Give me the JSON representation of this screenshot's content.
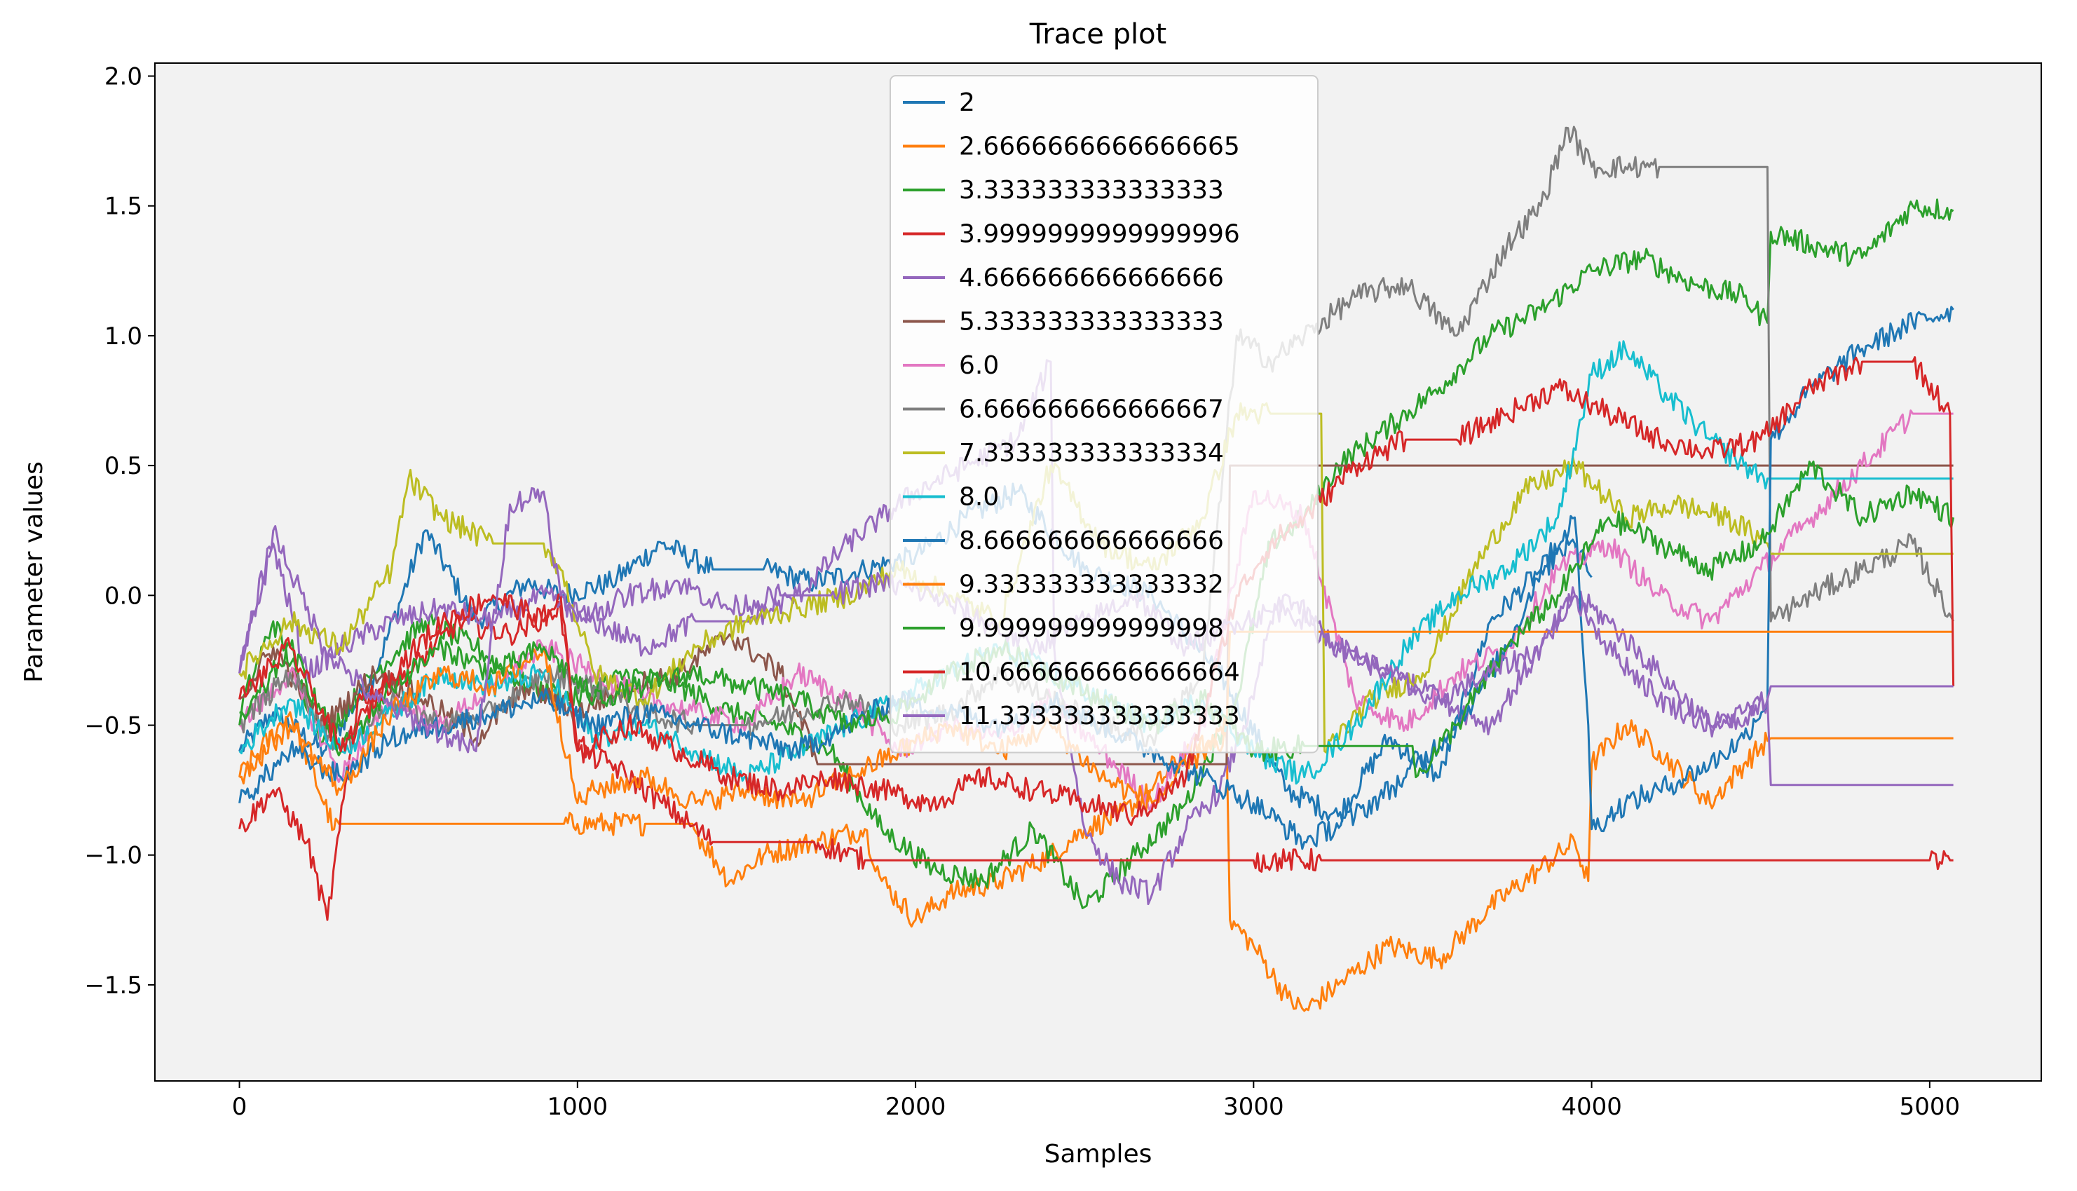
{
  "chart_data": {
    "type": "line",
    "title": "Trace plot",
    "xlabel": "Samples",
    "ylabel": "Parameter values",
    "xlim": [
      -250,
      5330
    ],
    "ylim": [
      -1.87,
      2.05
    ],
    "xticks": [
      0,
      1000,
      2000,
      3000,
      4000,
      5000
    ],
    "xtick_labels": [
      "0",
      "1000",
      "2000",
      "3000",
      "4000",
      "5000"
    ],
    "yticks": [
      -1.5,
      -1.0,
      -0.5,
      0.0,
      0.5,
      1.0,
      1.5,
      2.0
    ],
    "ytick_labels": [
      "−1.5",
      "−1.0",
      "−0.5",
      "0.0",
      "0.5",
      "1.0",
      "1.5",
      "2.0"
    ],
    "grid": false,
    "legend_position": "top-center",
    "plot_background": "#f2f2f2",
    "series": [
      {
        "name": "2",
        "color": "#1f77b4",
        "x": [
          0,
          100,
          250,
          400,
          550,
          700,
          850,
          950,
          1100,
          1250,
          1400,
          1550,
          1700,
          1850,
          2000,
          2150,
          2300,
          2500,
          2700,
          2900,
          3100,
          3250,
          3400,
          3550,
          3700,
          3850,
          3950,
          4000
        ],
        "y": [
          -0.6,
          -0.45,
          -0.6,
          -0.3,
          0.25,
          -0.1,
          0.05,
          0.0,
          0.05,
          0.2,
          0.1,
          0.1,
          0.05,
          0.1,
          0.15,
          0.3,
          0.4,
          0.1,
          0.0,
          -0.3,
          -0.75,
          -0.85,
          -0.55,
          -0.7,
          -0.1,
          0.1,
          0.2,
          0.07
        ]
      },
      {
        "name": "2.6666666666666665",
        "color": "#ff7f0e",
        "x": [
          0,
          150,
          280,
          300,
          800,
          960,
          1000,
          1100,
          1200,
          1340,
          1345,
          1450,
          1550,
          1700,
          1850,
          1900,
          2000,
          2100,
          2250,
          2400,
          2500,
          2600,
          2700,
          2800,
          2920,
          2930,
          3000,
          3100,
          3150,
          3250,
          3400,
          3550,
          3700,
          3850,
          3950,
          3990,
          4000,
          4100,
          4200,
          4350,
          4450,
          4520,
          4530,
          5070
        ],
        "y": [
          -0.7,
          -0.45,
          -0.9,
          -0.88,
          -0.88,
          -0.88,
          -0.88,
          -0.88,
          -0.88,
          -0.88,
          -0.9,
          -1.1,
          -1.0,
          -0.95,
          -0.9,
          -1.1,
          -1.25,
          -1.15,
          -1.1,
          -1.0,
          -0.9,
          -0.85,
          -0.75,
          -0.6,
          -0.55,
          -1.25,
          -1.35,
          -1.55,
          -1.6,
          -1.5,
          -1.35,
          -1.4,
          -1.2,
          -1.05,
          -0.95,
          -1.1,
          -0.65,
          -0.5,
          -0.6,
          -0.8,
          -0.65,
          -0.56,
          -0.55,
          -0.55
        ]
      },
      {
        "name": "3.333333333333333",
        "color": "#2ca02c",
        "x": [
          0,
          100,
          250,
          400,
          550,
          700,
          850,
          1000,
          1150,
          1300,
          1450,
          1600,
          1750,
          1900,
          2050,
          2200,
          2350,
          2500,
          2650,
          2800,
          2950,
          3050,
          3150,
          3250,
          3400,
          3550,
          3700,
          3850,
          4000,
          4150,
          4300,
          4450,
          4520,
          4530,
          4650,
          4800,
          4950,
          5070
        ],
        "y": [
          -0.45,
          -0.1,
          -0.55,
          -0.3,
          -0.1,
          -0.2,
          -0.35,
          -0.4,
          -0.3,
          -0.35,
          -0.45,
          -0.5,
          -0.6,
          -0.9,
          -1.05,
          -1.1,
          -0.9,
          -1.2,
          -1.0,
          -0.8,
          -0.4,
          0.2,
          0.3,
          0.5,
          0.65,
          0.8,
          1.0,
          1.1,
          1.25,
          1.3,
          1.2,
          1.15,
          1.05,
          1.4,
          1.35,
          1.3,
          1.5,
          1.48
        ]
      },
      {
        "name": "3.9999999999999996",
        "color": "#d62728",
        "x": [
          0,
          100,
          200,
          260,
          350,
          500,
          650,
          800,
          950,
          1000,
          1100,
          1250,
          1400,
          1550,
          1700,
          1850,
          1860,
          2100,
          2400,
          2700,
          3000,
          3100,
          3200,
          3350,
          3500,
          3650,
          3800,
          3950,
          4100,
          4250,
          4400,
          4550,
          4700,
          4850,
          5000,
          5060,
          5070
        ],
        "y": [
          -0.9,
          -0.75,
          -0.95,
          -1.25,
          -0.4,
          -0.3,
          -0.1,
          -0.15,
          -0.05,
          -0.6,
          -0.65,
          -0.8,
          -0.95,
          -0.95,
          -0.95,
          -1.02,
          -1.02,
          -1.02,
          -1.02,
          -1.02,
          -1.02,
          -1.02,
          -1.02,
          -1.02,
          -1.02,
          -1.02,
          -1.02,
          -1.02,
          -1.02,
          -1.02,
          -1.02,
          -1.02,
          -1.02,
          -1.02,
          -1.02,
          -1.02,
          -1.02
        ]
      },
      {
        "name": "4.666666666666666",
        "color": "#9467bd",
        "x": [
          0,
          100,
          200,
          300,
          450,
          600,
          750,
          900,
          1050,
          1200,
          1350,
          1500,
          1650,
          1800,
          1900,
          2000,
          2150,
          2300,
          2400,
          2410,
          2500,
          2600,
          2700,
          2800,
          2900,
          3000,
          3050,
          3100,
          3250,
          3400,
          3550,
          3700,
          3850,
          3950,
          4050,
          4200,
          4350,
          4450,
          4520,
          4530,
          5070
        ],
        "y": [
          -0.3,
          0.2,
          -0.3,
          -0.2,
          -0.1,
          -0.05,
          -0.1,
          0.0,
          -0.1,
          -0.2,
          -0.1,
          -0.1,
          0.0,
          0.2,
          0.3,
          0.4,
          0.5,
          0.6,
          0.9,
          -0.2,
          -0.9,
          -1.1,
          -1.15,
          -0.9,
          -0.75,
          -0.4,
          -0.1,
          0.0,
          -0.2,
          -0.3,
          -0.4,
          -0.5,
          -0.2,
          0.0,
          -0.1,
          -0.3,
          -0.5,
          -0.5,
          -0.4,
          -0.73,
          -0.73
        ]
      },
      {
        "name": "5.333333333333333",
        "color": "#8c564b",
        "x": [
          0,
          100,
          250,
          400,
          550,
          700,
          850,
          1000,
          1150,
          1300,
          1450,
          1600,
          1700,
          1710,
          2920,
          2930,
          5070
        ],
        "y": [
          -0.4,
          -0.2,
          -0.5,
          -0.3,
          -0.4,
          -0.55,
          -0.35,
          -0.45,
          -0.35,
          -0.3,
          -0.15,
          -0.3,
          -0.6,
          -0.65,
          -0.65,
          0.5,
          0.5
        ]
      },
      {
        "name": "6.0",
        "color": "#e377c2",
        "x": [
          0,
          150,
          300,
          450,
          600,
          750,
          900,
          1050,
          1200,
          1350,
          1500,
          1650,
          1800,
          1950,
          2100,
          2250,
          2400,
          2550,
          2700,
          2850,
          3000,
          3150,
          3300,
          3450,
          3600,
          3750,
          3900,
          4050,
          4200,
          4350,
          4500,
          4650,
          4800,
          4950,
          5070
        ],
        "y": [
          -0.5,
          -0.3,
          -0.7,
          -0.4,
          -0.5,
          -0.35,
          -0.2,
          -0.3,
          -0.4,
          -0.45,
          -0.5,
          -0.3,
          -0.4,
          -0.6,
          -0.5,
          -0.55,
          -0.4,
          -0.6,
          -0.8,
          -0.5,
          0.4,
          0.3,
          -0.4,
          -0.5,
          -0.3,
          -0.2,
          0.1,
          0.2,
          0.0,
          -0.1,
          0.1,
          0.3,
          0.5,
          0.7,
          0.7
        ]
      },
      {
        "name": "6.666666666666667",
        "color": "#7f7f7f",
        "x": [
          0,
          150,
          300,
          450,
          600,
          750,
          900,
          1050,
          1200,
          1350,
          1500,
          1650,
          1800,
          1950,
          2100,
          2250,
          2400,
          2550,
          2700,
          2850,
          2950,
          3050,
          3150,
          3300,
          3450,
          3600,
          3750,
          3850,
          3930,
          4000,
          4100,
          4200,
          4400,
          4520,
          4530,
          4650,
          4800,
          4950,
          5070
        ],
        "y": [
          -0.5,
          -0.3,
          -0.6,
          -0.4,
          -0.5,
          -0.45,
          -0.3,
          -0.35,
          -0.45,
          -0.5,
          -0.5,
          -0.45,
          -0.4,
          -0.5,
          -0.45,
          -0.3,
          -0.4,
          -0.5,
          -0.55,
          -0.3,
          1.0,
          0.9,
          1.0,
          1.15,
          1.2,
          1.0,
          1.35,
          1.5,
          1.8,
          1.65,
          1.65,
          1.65,
          1.65,
          1.65,
          -0.1,
          0.0,
          0.1,
          0.2,
          -0.1
        ]
      },
      {
        "name": "7.333333333333334",
        "color": "#bcbd22",
        "x": [
          0,
          150,
          300,
          450,
          500,
          600,
          750,
          900,
          950,
          1050,
          1200,
          1350,
          1500,
          1650,
          1800,
          1950,
          2100,
          2250,
          2400,
          2550,
          2700,
          2850,
          2950,
          3050,
          3200,
          3210,
          3350,
          3500,
          3650,
          3800,
          3950,
          4100,
          4250,
          4400,
          4520,
          4530,
          5070
        ],
        "y": [
          -0.3,
          -0.1,
          -0.2,
          0.1,
          0.45,
          0.3,
          0.2,
          0.2,
          0.1,
          -0.3,
          -0.4,
          -0.2,
          -0.1,
          -0.05,
          0.0,
          0.1,
          0.0,
          -0.1,
          0.5,
          0.2,
          0.1,
          0.3,
          0.7,
          0.7,
          0.7,
          -0.6,
          -0.4,
          -0.3,
          0.1,
          0.4,
          0.5,
          0.3,
          0.35,
          0.3,
          0.2,
          0.16,
          0.16
        ]
      },
      {
        "name": "8.0",
        "color": "#17becf",
        "x": [
          0,
          150,
          300,
          450,
          600,
          750,
          900,
          1050,
          1200,
          1350,
          1500,
          1650,
          1800,
          1950,
          2100,
          2250,
          2400,
          2550,
          2700,
          2850,
          3000,
          3150,
          3300,
          3450,
          3600,
          3750,
          3900,
          4000,
          4100,
          4200,
          4350,
          4450,
          4520,
          4530,
          5070
        ],
        "y": [
          -0.6,
          -0.4,
          -0.6,
          -0.45,
          -0.3,
          -0.35,
          -0.3,
          -0.55,
          -0.5,
          -0.6,
          -0.7,
          -0.6,
          -0.5,
          -0.4,
          -0.3,
          -0.2,
          -0.3,
          -0.4,
          -0.5,
          -0.4,
          -0.6,
          -0.7,
          -0.5,
          -0.2,
          0.0,
          0.1,
          0.3,
          0.85,
          0.95,
          0.8,
          0.6,
          0.5,
          0.45,
          0.45,
          0.45
        ]
      },
      {
        "name": "8.666666666666666",
        "color": "#1f77b4",
        "x": [
          0,
          150,
          300,
          450,
          600,
          750,
          900,
          1050,
          1200,
          1350,
          1500,
          1650,
          1800,
          1950,
          2100,
          2250,
          2400,
          2550,
          2700,
          2850,
          3000,
          3150,
          3300,
          3450,
          3600,
          3750,
          3850,
          3950,
          3990,
          4000,
          4100,
          4200,
          4350,
          4450,
          4520,
          4530,
          4650,
          4800,
          4950,
          5070
        ],
        "y": [
          -0.8,
          -0.6,
          -0.7,
          -0.55,
          -0.5,
          -0.45,
          -0.4,
          -0.5,
          -0.45,
          -0.5,
          -0.55,
          -0.6,
          -0.5,
          -0.4,
          -0.45,
          -0.5,
          -0.4,
          -0.5,
          -0.6,
          -0.7,
          -0.8,
          -0.95,
          -0.85,
          -0.7,
          -0.5,
          -0.2,
          0.1,
          0.3,
          -0.5,
          -0.9,
          -0.8,
          -0.75,
          -0.65,
          -0.55,
          -0.4,
          0.6,
          0.8,
          0.95,
          1.05,
          1.1
        ]
      },
      {
        "name": "9.333333333333332",
        "color": "#ff7f0e",
        "x": [
          0,
          150,
          300,
          450,
          600,
          750,
          900,
          1000,
          1050,
          1200,
          1350,
          1500,
          1650,
          1800,
          1950,
          2100,
          2250,
          2400,
          2550,
          2700,
          2850,
          2920,
          2930,
          5070
        ],
        "y": [
          -0.7,
          -0.5,
          -0.75,
          -0.45,
          -0.3,
          -0.35,
          -0.2,
          -0.8,
          -0.75,
          -0.7,
          -0.8,
          -0.75,
          -0.8,
          -0.7,
          -0.6,
          -0.5,
          -0.6,
          -0.5,
          -0.7,
          -0.8,
          -0.6,
          -0.5,
          -0.14,
          -0.14
        ]
      },
      {
        "name": "9.999999999999998",
        "color": "#2ca02c",
        "x": [
          0,
          150,
          300,
          450,
          600,
          750,
          900,
          1050,
          1200,
          1350,
          1500,
          1650,
          1800,
          1950,
          2100,
          2250,
          2400,
          2550,
          2700,
          2850,
          3000,
          3150,
          3300,
          3470,
          3480,
          3600,
          3750,
          3900,
          4050,
          4200,
          4350,
          4500,
          4650,
          4800,
          4950,
          5070
        ],
        "y": [
          -0.5,
          -0.2,
          -0.6,
          -0.35,
          -0.2,
          -0.3,
          -0.2,
          -0.4,
          -0.35,
          -0.3,
          -0.35,
          -0.4,
          -0.5,
          -0.45,
          -0.3,
          -0.2,
          -0.3,
          -0.4,
          -0.5,
          -0.4,
          -0.6,
          -0.58,
          -0.58,
          -0.58,
          -0.7,
          -0.5,
          -0.2,
          0.0,
          0.3,
          0.2,
          0.1,
          0.2,
          0.5,
          0.3,
          0.4,
          0.3
        ]
      },
      {
        "name": "10.666666666666664",
        "color": "#d62728",
        "x": [
          0,
          150,
          300,
          450,
          600,
          750,
          900,
          950,
          1000,
          1150,
          1300,
          1450,
          1600,
          1750,
          1900,
          2050,
          2200,
          2350,
          2500,
          2650,
          2800,
          2950,
          3050,
          3150,
          3300,
          3450,
          3600,
          3750,
          3900,
          4050,
          4200,
          4350,
          4500,
          4650,
          4800,
          4950,
          5060,
          5070
        ],
        "y": [
          -0.4,
          -0.2,
          -0.6,
          -0.3,
          -0.1,
          0.0,
          -0.1,
          0.0,
          -0.6,
          -0.5,
          -0.6,
          -0.7,
          -0.75,
          -0.7,
          -0.75,
          -0.8,
          -0.7,
          -0.75,
          -0.8,
          -0.85,
          -0.7,
          0.0,
          0.2,
          0.3,
          0.5,
          0.6,
          0.6,
          0.7,
          0.8,
          0.7,
          0.6,
          0.55,
          0.6,
          0.8,
          0.9,
          0.9,
          0.7,
          -0.35
        ]
      },
      {
        "name": "11.333333333333333",
        "color": "#9467bd",
        "x": [
          0,
          100,
          250,
          400,
          550,
          700,
          800,
          900,
          950,
          1000,
          1150,
          1300,
          1450,
          1600,
          1750,
          1900,
          2050,
          2200,
          2350,
          2500,
          2650,
          2800,
          2950,
          3100,
          3250,
          3400,
          3550,
          3700,
          3850,
          3950,
          4050,
          4200,
          4350,
          4450,
          4520,
          4530,
          5070
        ],
        "y": [
          -0.3,
          0.25,
          -0.2,
          -0.4,
          -0.5,
          -0.6,
          0.35,
          0.4,
          0.0,
          -0.1,
          0.0,
          0.05,
          -0.05,
          0.0,
          0.0,
          0.05,
          0.0,
          -0.1,
          -0.2,
          -0.1,
          0.0,
          -0.2,
          -0.1,
          -0.05,
          -0.2,
          -0.3,
          -0.4,
          -0.3,
          -0.2,
          0.0,
          -0.2,
          -0.4,
          -0.5,
          -0.45,
          -0.4,
          -0.35,
          -0.35
        ]
      }
    ]
  }
}
